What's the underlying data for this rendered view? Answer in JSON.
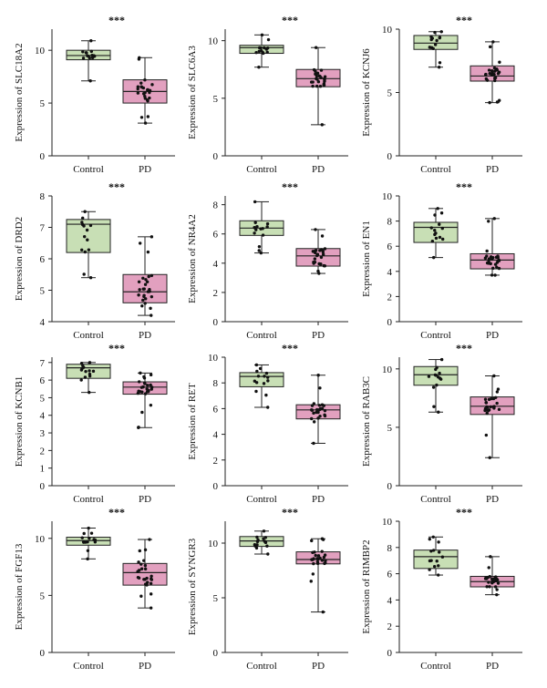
{
  "colors": {
    "control": "#c8dfb5",
    "pd": "#e2a0bf",
    "axis": "#222222",
    "dot": "#111111"
  },
  "chart_data": [
    {
      "type": "box",
      "ylabel": "Expression of SLC18A2",
      "ylim": [
        0,
        12
      ],
      "yticks": [
        0,
        5,
        10
      ],
      "categories": [
        "Control",
        "PD"
      ],
      "significance": "***",
      "boxes": [
        {
          "min": 7.1,
          "q1": 9.1,
          "median": 9.5,
          "q3": 10.0,
          "max": 10.9
        },
        {
          "min": 3.1,
          "q1": 5.0,
          "median": 6.1,
          "q3": 7.2,
          "max": 9.3
        }
      ]
    },
    {
      "type": "box",
      "ylabel": "Expression of SLC6A3",
      "ylim": [
        0,
        11
      ],
      "yticks": [
        0,
        5,
        10
      ],
      "categories": [
        "Control",
        "PD"
      ],
      "significance": "***",
      "boxes": [
        {
          "min": 7.7,
          "q1": 8.9,
          "median": 9.4,
          "q3": 9.6,
          "max": 10.5
        },
        {
          "min": 2.7,
          "q1": 6.0,
          "median": 6.7,
          "q3": 7.5,
          "max": 9.4
        }
      ]
    },
    {
      "type": "box",
      "ylabel": "Expression of KCNJ6",
      "ylim": [
        0,
        10
      ],
      "yticks": [
        0,
        5,
        10
      ],
      "categories": [
        "Control",
        "PD"
      ],
      "significance": "***",
      "boxes": [
        {
          "min": 7.0,
          "q1": 8.4,
          "median": 8.9,
          "q3": 9.5,
          "max": 9.8
        },
        {
          "min": 4.2,
          "q1": 5.9,
          "median": 6.3,
          "q3": 7.1,
          "max": 9.0
        }
      ]
    },
    {
      "type": "box",
      "ylabel": "Expression of DRD2",
      "ylim": [
        4,
        8
      ],
      "yticks": [
        4,
        5,
        6,
        7,
        8
      ],
      "categories": [
        "Control",
        "PD"
      ],
      "significance": "***",
      "boxes": [
        {
          "min": 5.4,
          "q1": 6.2,
          "median": 7.1,
          "q3": 7.25,
          "max": 7.5
        },
        {
          "min": 4.2,
          "q1": 4.6,
          "median": 4.95,
          "q3": 5.5,
          "max": 6.7
        }
      ]
    },
    {
      "type": "box",
      "ylabel": "Expression of NR4A2",
      "ylim": [
        0,
        8.6
      ],
      "yticks": [
        0,
        2,
        4,
        6,
        8
      ],
      "categories": [
        "Control",
        "PD"
      ],
      "significance": "***",
      "boxes": [
        {
          "min": 4.7,
          "q1": 5.9,
          "median": 6.4,
          "q3": 6.9,
          "max": 8.2
        },
        {
          "min": 3.3,
          "q1": 3.8,
          "median": 4.5,
          "q3": 5.0,
          "max": 6.3
        }
      ]
    },
    {
      "type": "box",
      "ylabel": "Expression of EN1",
      "ylim": [
        0,
        10
      ],
      "yticks": [
        0,
        2,
        4,
        6,
        8,
        10
      ],
      "categories": [
        "Control",
        "PD"
      ],
      "significance": "***",
      "boxes": [
        {
          "min": 5.1,
          "q1": 6.3,
          "median": 7.5,
          "q3": 7.9,
          "max": 9.0
        },
        {
          "min": 3.7,
          "q1": 4.2,
          "median": 4.9,
          "q3": 5.4,
          "max": 8.2
        }
      ]
    },
    {
      "type": "box",
      "ylabel": "Expression of KCNB1",
      "ylim": [
        0,
        7.3
      ],
      "yticks": [
        0,
        1,
        2,
        3,
        4,
        5,
        6,
        7
      ],
      "categories": [
        "Control",
        "PD"
      ],
      "significance": "***",
      "boxes": [
        {
          "min": 5.3,
          "q1": 6.1,
          "median": 6.7,
          "q3": 6.9,
          "max": 7.0
        },
        {
          "min": 3.3,
          "q1": 5.2,
          "median": 5.6,
          "q3": 5.9,
          "max": 6.4
        }
      ]
    },
    {
      "type": "box",
      "ylabel": "Expression of RET",
      "ylim": [
        0,
        10
      ],
      "yticks": [
        0,
        2,
        4,
        6,
        8,
        10
      ],
      "categories": [
        "Control",
        "PD"
      ],
      "significance": "***",
      "boxes": [
        {
          "min": 6.1,
          "q1": 7.7,
          "median": 8.5,
          "q3": 8.8,
          "max": 9.4
        },
        {
          "min": 3.3,
          "q1": 5.2,
          "median": 5.9,
          "q3": 6.3,
          "max": 8.6
        }
      ]
    },
    {
      "type": "box",
      "ylabel": "Expression of RAB3C",
      "ylim": [
        0,
        11
      ],
      "yticks": [
        0,
        5,
        10
      ],
      "categories": [
        "Control",
        "PD"
      ],
      "significance": "***",
      "boxes": [
        {
          "min": 6.3,
          "q1": 8.6,
          "median": 9.5,
          "q3": 10.2,
          "max": 10.8
        },
        {
          "min": 2.4,
          "q1": 6.1,
          "median": 6.8,
          "q3": 7.6,
          "max": 9.4
        }
      ]
    },
    {
      "type": "box",
      "ylabel": "Expression of FGF13",
      "ylim": [
        0,
        11.5
      ],
      "yticks": [
        0,
        5,
        10
      ],
      "categories": [
        "Control",
        "PD"
      ],
      "significance": "***",
      "boxes": [
        {
          "min": 8.2,
          "q1": 9.4,
          "median": 9.8,
          "q3": 10.1,
          "max": 10.9
        },
        {
          "min": 3.9,
          "q1": 5.9,
          "median": 7.0,
          "q3": 7.8,
          "max": 9.9
        }
      ]
    },
    {
      "type": "box",
      "ylabel": "Expression of SYNGR3",
      "ylim": [
        0,
        12
      ],
      "yticks": [
        0,
        5,
        10
      ],
      "categories": [
        "Control",
        "PD"
      ],
      "significance": "***",
      "boxes": [
        {
          "min": 9.0,
          "q1": 9.7,
          "median": 10.2,
          "q3": 10.6,
          "max": 11.1
        },
        {
          "min": 3.7,
          "q1": 8.1,
          "median": 8.5,
          "q3": 9.2,
          "max": 10.4
        }
      ]
    },
    {
      "type": "box",
      "ylabel": "Expression of RIMBP2",
      "ylim": [
        0,
        10
      ],
      "yticks": [
        0,
        2,
        4,
        6,
        8,
        10
      ],
      "categories": [
        "Control",
        "PD"
      ],
      "significance": "***",
      "boxes": [
        {
          "min": 5.9,
          "q1": 6.4,
          "median": 7.3,
          "q3": 7.8,
          "max": 8.8
        },
        {
          "min": 4.4,
          "q1": 5.0,
          "median": 5.4,
          "q3": 5.8,
          "max": 7.3
        }
      ]
    }
  ]
}
